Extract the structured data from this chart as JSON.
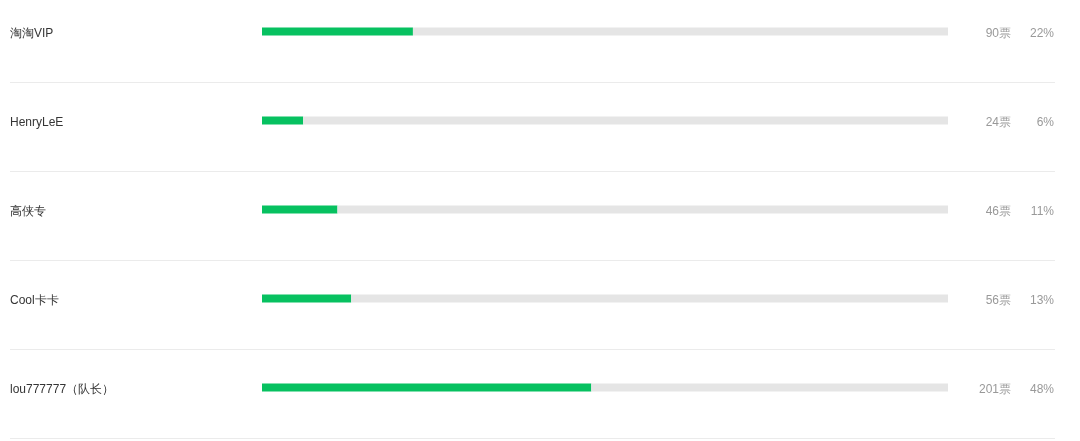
{
  "chart_data": {
    "type": "bar",
    "orientation": "horizontal",
    "stacked": true,
    "categories": [
      "淘淘VIP",
      "HenryLeE",
      "高侠专",
      "Cool卡卡",
      "lou777777（队长）"
    ],
    "series": [
      {
        "color": "#07c160",
        "values": [
          22,
          6,
          11,
          13,
          48
        ],
        "value_labels": [
          "22%",
          "6%",
          "11%",
          "13%",
          "48%"
        ]
      },
      {
        "color": "#e5e5e5",
        "values": [
          78,
          94,
          89,
          87,
          52
        ]
      }
    ],
    "xlim": [
      0,
      100
    ],
    "tick_labels": "y",
    "grid": "y",
    "annotations": [
      "90票",
      "24票",
      "46票",
      "56票",
      "201票"
    ]
  }
}
